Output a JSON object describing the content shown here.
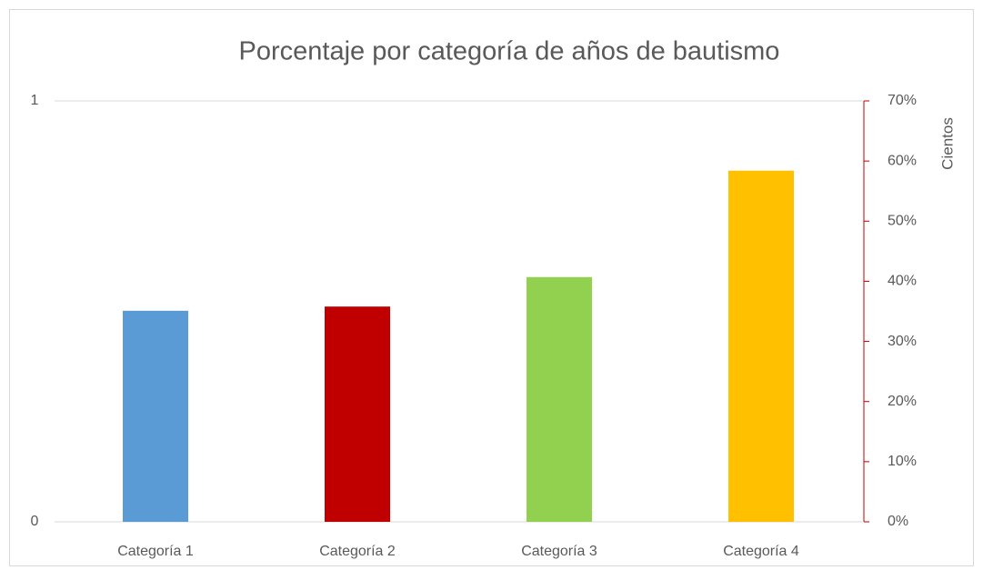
{
  "chart_data": {
    "type": "bar",
    "title": "Porcentaje por categoría de años de bautismo",
    "categories": [
      "Categoría 1",
      "Categoría 2",
      "Categoría 3",
      "Categoría 4"
    ],
    "series": [
      {
        "values": [
          35.1,
          35.8,
          40.7,
          58.4
        ],
        "colors": [
          "#5b9bd5",
          "#c00000",
          "#92d050",
          "#ffc000"
        ],
        "axis": "y2"
      }
    ],
    "ylim": [
      0,
      1
    ],
    "yticks": [
      0,
      1
    ],
    "y2lim": [
      0,
      70
    ],
    "y2ticks": [
      {
        "value": 0,
        "label": "0%"
      },
      {
        "value": 10,
        "label": "10%"
      },
      {
        "value": 20,
        "label": "20%"
      },
      {
        "value": 30,
        "label": "30%"
      },
      {
        "value": 40,
        "label": "40%"
      },
      {
        "value": 50,
        "label": "50%"
      },
      {
        "value": 60,
        "label": "60%"
      },
      {
        "value": 70,
        "label": "70%"
      }
    ],
    "y2_axis_label": "Cientos",
    "y2_axis_color": "#c00000",
    "grid": true
  }
}
